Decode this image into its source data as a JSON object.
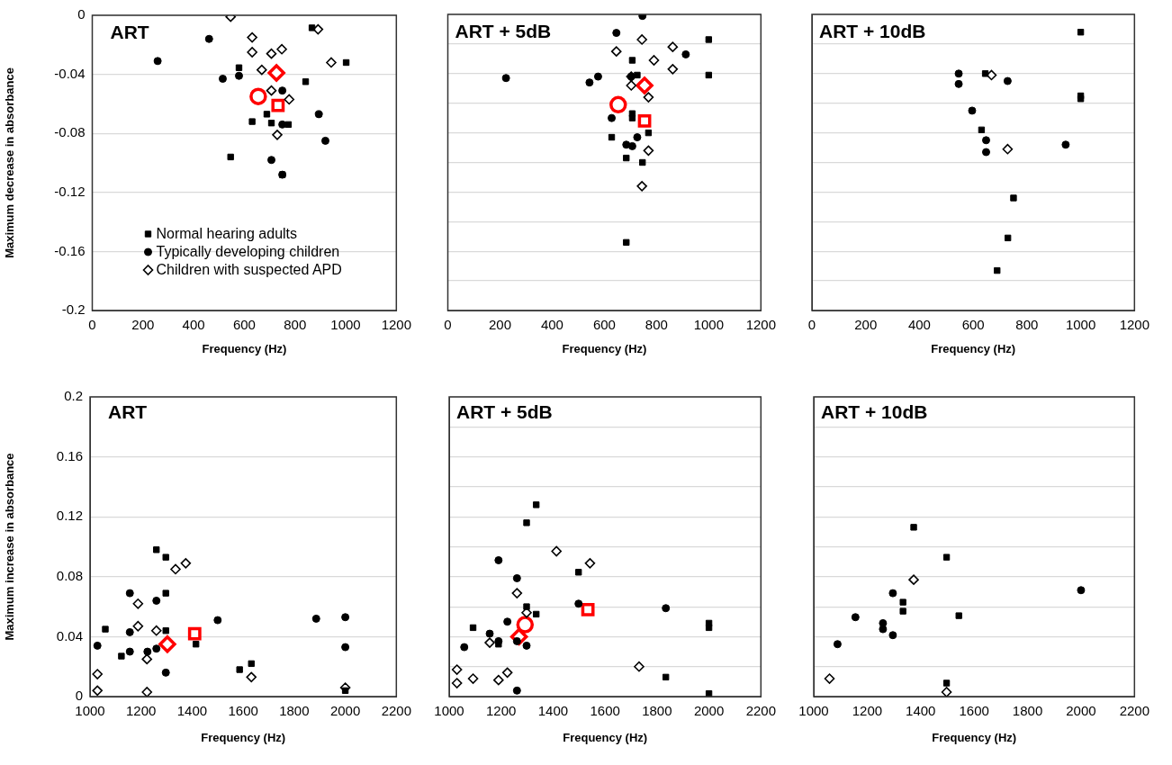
{
  "chart_data": [
    {
      "type": "scatter",
      "title": "ART",
      "xlabel": "Frequency (Hz)",
      "ylabel": "Maximum decrease in absorbance",
      "xlim": [
        0,
        1200
      ],
      "xticks": [
        0,
        200,
        400,
        600,
        800,
        1000,
        1200
      ],
      "ylim": [
        -0.2,
        0
      ],
      "yticks": [
        -0.2,
        -0.16,
        -0.12,
        -0.08,
        -0.04,
        0
      ],
      "grid": "y",
      "legend": "bottom left",
      "series": [
        {
          "name": "Normal hearing adults",
          "color": "#000000",
          "marker": "square",
          "x": [
            867,
            1002,
            579,
            842,
            689,
            631,
            707,
            774,
            546,
            750
          ],
          "values": [
            -0.0085,
            -0.032,
            -0.0355,
            -0.045,
            -0.067,
            -0.072,
            -0.073,
            -0.074,
            -0.096,
            -0.108
          ]
        },
        {
          "name": "Typically developing children",
          "color": "#000000",
          "marker": "circle",
          "x": [
            461,
            258,
            515,
            579,
            750,
            894,
            750,
            920,
            707,
            750
          ],
          "values": [
            -0.016,
            -0.031,
            -0.043,
            -0.041,
            -0.051,
            -0.067,
            -0.074,
            -0.085,
            -0.098,
            -0.108
          ]
        },
        {
          "name": "Children with suspected APD",
          "color": "#000000",
          "marker": "diamond",
          "x": [
            546,
            891,
            631,
            631,
            707,
            748,
            943,
            669,
            707,
            777,
            730
          ],
          "values": [
            -0.001,
            -0.0095,
            -0.015,
            -0.025,
            -0.026,
            -0.023,
            -0.032,
            -0.037,
            -0.051,
            -0.057,
            -0.081
          ]
        },
        {
          "color": "#ff0000",
          "marker": "circle",
          "x": [
            655
          ],
          "values": [
            -0.055
          ]
        },
        {
          "color": "#ff0000",
          "marker": "square",
          "x": [
            733
          ],
          "values": [
            -0.061
          ]
        },
        {
          "color": "#ff0000",
          "marker": "diamond",
          "x": [
            727
          ],
          "values": [
            -0.039
          ]
        }
      ]
    },
    {
      "type": "scatter",
      "title": "ART + 5dB",
      "xlabel": "Frequency (Hz)",
      "xlim": [
        0,
        1200
      ],
      "xticks": [
        0,
        200,
        400,
        600,
        800,
        1000,
        1200
      ],
      "ylim": [
        -0.2,
        0
      ],
      "yticks": [
        -0.2,
        -0.18,
        -0.16,
        -0.14,
        -0.12,
        -0.1,
        -0.08,
        -0.06,
        -0.04,
        -0.02,
        0
      ],
      "grid": "y",
      "tick_labels": "x",
      "series": [
        {
          "color": "#000000",
          "marker": "square",
          "x": [
            1000,
            1000,
            707,
            726,
            707,
            707,
            769,
            628,
            684,
            746,
            684
          ],
          "values": [
            -0.017,
            -0.041,
            -0.031,
            -0.041,
            -0.067,
            -0.07,
            -0.08,
            -0.083,
            -0.097,
            -0.1,
            -0.154
          ]
        },
        {
          "color": "#000000",
          "marker": "circle",
          "x": [
            746,
            646,
            912,
            223,
            576,
            543,
            703,
            628,
            726,
            684,
            707
          ],
          "values": [
            -0.001,
            -0.0125,
            -0.027,
            -0.043,
            -0.042,
            -0.046,
            -0.042,
            -0.07,
            -0.083,
            -0.088,
            -0.089
          ]
        },
        {
          "color": "#000000",
          "marker": "diamond",
          "x": [
            744,
            646,
            862,
            790,
            862,
            703,
            703,
            769,
            769,
            744
          ],
          "values": [
            -0.017,
            -0.025,
            -0.022,
            -0.031,
            -0.037,
            -0.042,
            -0.048,
            -0.056,
            -0.092,
            -0.116
          ]
        },
        {
          "color": "#ff0000",
          "marker": "circle",
          "x": [
            653
          ],
          "values": [
            -0.061
          ]
        },
        {
          "color": "#ff0000",
          "marker": "square",
          "x": [
            754
          ],
          "values": [
            -0.072
          ]
        },
        {
          "color": "#ff0000",
          "marker": "diamond",
          "x": [
            754
          ],
          "values": [
            -0.048
          ]
        }
      ]
    },
    {
      "type": "scatter",
      "title": "ART + 10dB",
      "xlabel": "Frequency (Hz)",
      "xlim": [
        0,
        1200
      ],
      "xticks": [
        0,
        200,
        400,
        600,
        800,
        1000,
        1200
      ],
      "ylim": [
        -0.2,
        0
      ],
      "yticks": [
        -0.2,
        -0.18,
        -0.16,
        -0.14,
        -0.12,
        -0.1,
        -0.08,
        -0.06,
        -0.04,
        -0.02,
        0
      ],
      "grid": "y",
      "tick_labels": "x",
      "series": [
        {
          "color": "#000000",
          "marker": "square",
          "x": [
            1000,
            1000,
            1000,
            645,
            631,
            750,
            729,
            689
          ],
          "values": [
            -0.012,
            -0.055,
            -0.057,
            -0.04,
            -0.078,
            -0.124,
            -0.151,
            -0.173
          ]
        },
        {
          "color": "#000000",
          "marker": "circle",
          "x": [
            546,
            546,
            728,
            596,
            648,
            648,
            944
          ],
          "values": [
            -0.04,
            -0.047,
            -0.045,
            -0.065,
            -0.085,
            -0.093,
            -0.088
          ]
        },
        {
          "color": "#000000",
          "marker": "diamond",
          "x": [
            668,
            728
          ],
          "values": [
            -0.041,
            -0.091
          ]
        }
      ]
    },
    {
      "type": "scatter",
      "title": "ART",
      "xlabel": "Frequency (Hz)",
      "ylabel": "Maximum increase in absorbance",
      "xlim": [
        1000,
        2200
      ],
      "xticks": [
        1000,
        1200,
        1400,
        1600,
        1800,
        2000,
        2200
      ],
      "ylim": [
        0,
        0.2
      ],
      "yticks": [
        0,
        0.04,
        0.08,
        0.12,
        0.16,
        0.2
      ],
      "grid": "y",
      "series": [
        {
          "color": "#000000",
          "marker": "square",
          "x": [
            1260,
            1297,
            1297,
            1060,
            1297,
            1123,
            1415,
            1586,
            1632,
            2000
          ],
          "values": [
            0.098,
            0.093,
            0.069,
            0.045,
            0.044,
            0.027,
            0.035,
            0.018,
            0.022,
            0.004
          ]
        },
        {
          "color": "#000000",
          "marker": "circle",
          "x": [
            1156,
            1260,
            1156,
            1500,
            1886,
            2000,
            1029,
            1225,
            1260,
            2000,
            1297,
            1156
          ],
          "values": [
            0.069,
            0.064,
            0.043,
            0.051,
            0.052,
            0.053,
            0.034,
            0.03,
            0.032,
            0.033,
            0.016,
            0.03
          ]
        },
        {
          "color": "#000000",
          "marker": "diamond",
          "x": [
            1188,
            1335,
            1375,
            1188,
            1260,
            1223,
            1029,
            1029,
            1223,
            1632,
            2000
          ],
          "values": [
            0.062,
            0.085,
            0.089,
            0.047,
            0.044,
            0.025,
            0.015,
            0.004,
            0.003,
            0.013,
            0.006
          ]
        },
        {
          "color": "#ff0000",
          "marker": "square",
          "x": [
            1410
          ],
          "values": [
            0.042
          ]
        },
        {
          "color": "#ff0000",
          "marker": "diamond",
          "x": [
            1303
          ],
          "values": [
            0.035
          ]
        }
      ]
    },
    {
      "type": "scatter",
      "title": "ART + 5dB",
      "xlabel": "Frequency (Hz)",
      "xlim": [
        1000,
        2200
      ],
      "xticks": [
        1000,
        1200,
        1400,
        1600,
        1800,
        2000,
        2200
      ],
      "ylim": [
        0,
        0.2
      ],
      "yticks": [
        0,
        0.02,
        0.04,
        0.06,
        0.08,
        0.1,
        0.12,
        0.14,
        0.16,
        0.18,
        0.2
      ],
      "grid": "y",
      "tick_labels": "x",
      "series": [
        {
          "color": "#000000",
          "marker": "square",
          "x": [
            1335,
            1298,
            1498,
            1335,
            1298,
            1092,
            1190,
            2000,
            2000,
            1834,
            2000
          ],
          "values": [
            0.128,
            0.116,
            0.083,
            0.055,
            0.06,
            0.046,
            0.035,
            0.049,
            0.046,
            0.013,
            0.002
          ]
        },
        {
          "color": "#000000",
          "marker": "circle",
          "x": [
            1190,
            1261,
            1498,
            1834,
            1224,
            1156,
            1058,
            1190,
            1261,
            1298,
            1261
          ],
          "values": [
            0.091,
            0.079,
            0.062,
            0.059,
            0.05,
            0.042,
            0.033,
            0.037,
            0.037,
            0.034,
            0.004
          ]
        },
        {
          "color": "#000000",
          "marker": "diamond",
          "x": [
            1413,
            1542,
            1261,
            1298,
            1156,
            1030,
            1030,
            1092,
            1190,
            1224,
            1731
          ],
          "values": [
            0.097,
            0.089,
            0.069,
            0.056,
            0.036,
            0.018,
            0.009,
            0.012,
            0.011,
            0.016,
            0.02
          ]
        },
        {
          "color": "#ff0000",
          "marker": "circle",
          "x": [
            1292
          ],
          "values": [
            0.048
          ]
        },
        {
          "color": "#ff0000",
          "marker": "square",
          "x": [
            1534
          ],
          "values": [
            0.058
          ]
        },
        {
          "color": "#ff0000",
          "marker": "diamond",
          "x": [
            1269
          ],
          "values": [
            0.04
          ]
        }
      ]
    },
    {
      "type": "scatter",
      "title": "ART + 10dB",
      "xlabel": "Frequency (Hz)",
      "xlim": [
        1000,
        2200
      ],
      "xticks": [
        1000,
        1200,
        1400,
        1600,
        1800,
        2000,
        2200
      ],
      "ylim": [
        0,
        0.2
      ],
      "yticks": [
        0,
        0.02,
        0.04,
        0.06,
        0.08,
        0.1,
        0.12,
        0.14,
        0.16,
        0.18,
        0.2
      ],
      "grid": "y",
      "tick_labels": "x",
      "series": [
        {
          "color": "#000000",
          "marker": "square",
          "x": [
            1374,
            1497,
            1334,
            1334,
            1543,
            1497
          ],
          "values": [
            0.113,
            0.093,
            0.063,
            0.057,
            0.054,
            0.009
          ]
        },
        {
          "color": "#000000",
          "marker": "circle",
          "x": [
            1296,
            1156,
            1259,
            1259,
            1296,
            1089,
            2000
          ],
          "values": [
            0.069,
            0.053,
            0.049,
            0.045,
            0.041,
            0.035,
            0.071
          ]
        },
        {
          "color": "#000000",
          "marker": "diamond",
          "x": [
            1374,
            1059,
            1497
          ],
          "values": [
            0.078,
            0.012,
            0.003
          ]
        }
      ]
    }
  ]
}
